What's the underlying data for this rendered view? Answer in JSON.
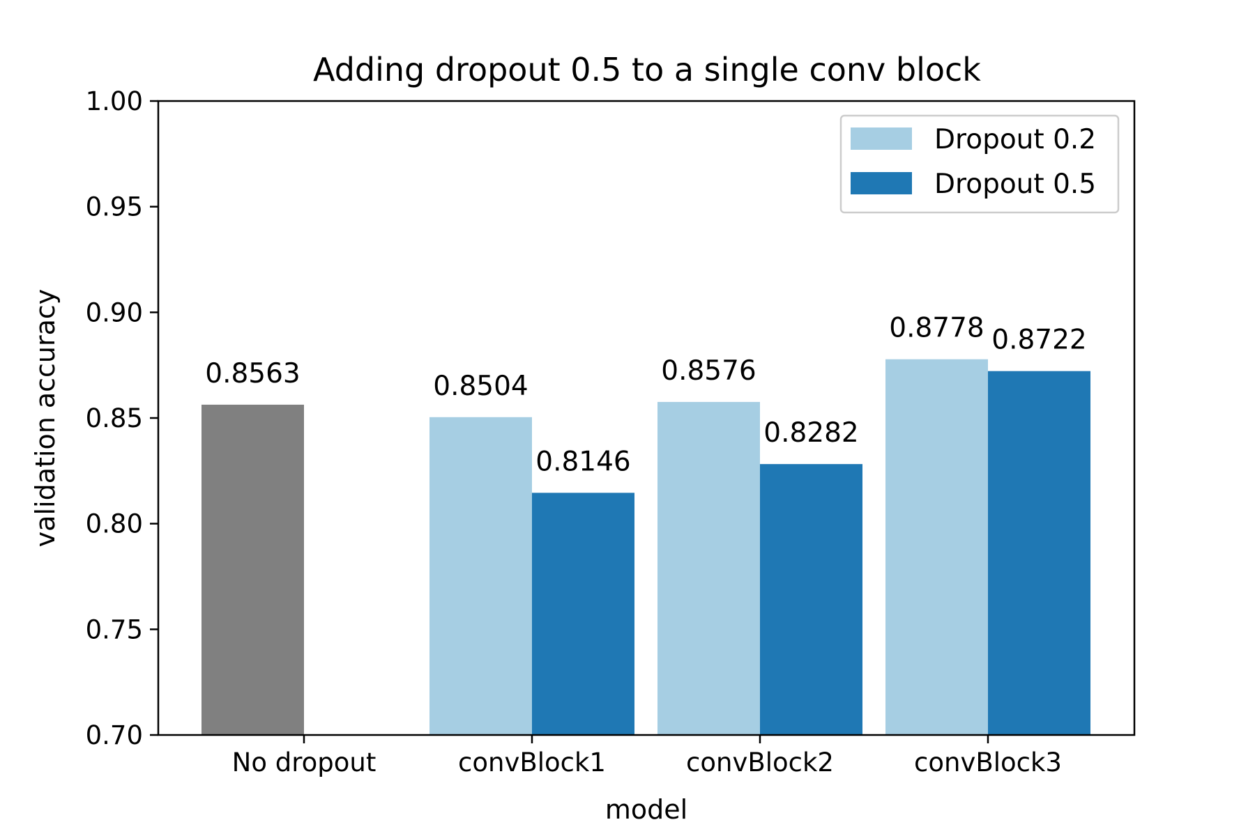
{
  "chart_data": {
    "type": "bar",
    "title": "Adding dropout 0.5 to a single conv block",
    "xlabel": "model",
    "ylabel": "validation accuracy",
    "ylim": [
      0.7,
      1.0
    ],
    "yticks": [
      "0.70",
      "0.75",
      "0.80",
      "0.85",
      "0.90",
      "0.95",
      "1.00"
    ],
    "categories": [
      "No dropout",
      "convBlock1",
      "convBlock2",
      "convBlock3"
    ],
    "baseline": {
      "category": "No dropout",
      "value": 0.8563,
      "label": "0.8563",
      "color": "#808080"
    },
    "series": [
      {
        "name": "Dropout 0.2",
        "color": "#a6cee3",
        "values": [
          null,
          0.8504,
          0.8576,
          0.8778
        ],
        "labels": [
          "",
          "0.8504",
          "0.8576",
          "0.8778"
        ]
      },
      {
        "name": "Dropout 0.5",
        "color": "#1f78b4",
        "values": [
          null,
          0.8146,
          0.8282,
          0.8722
        ],
        "labels": [
          "",
          "0.8146",
          "0.8282",
          "0.8722"
        ]
      }
    ],
    "legend_position": "top-right",
    "grid": false
  }
}
